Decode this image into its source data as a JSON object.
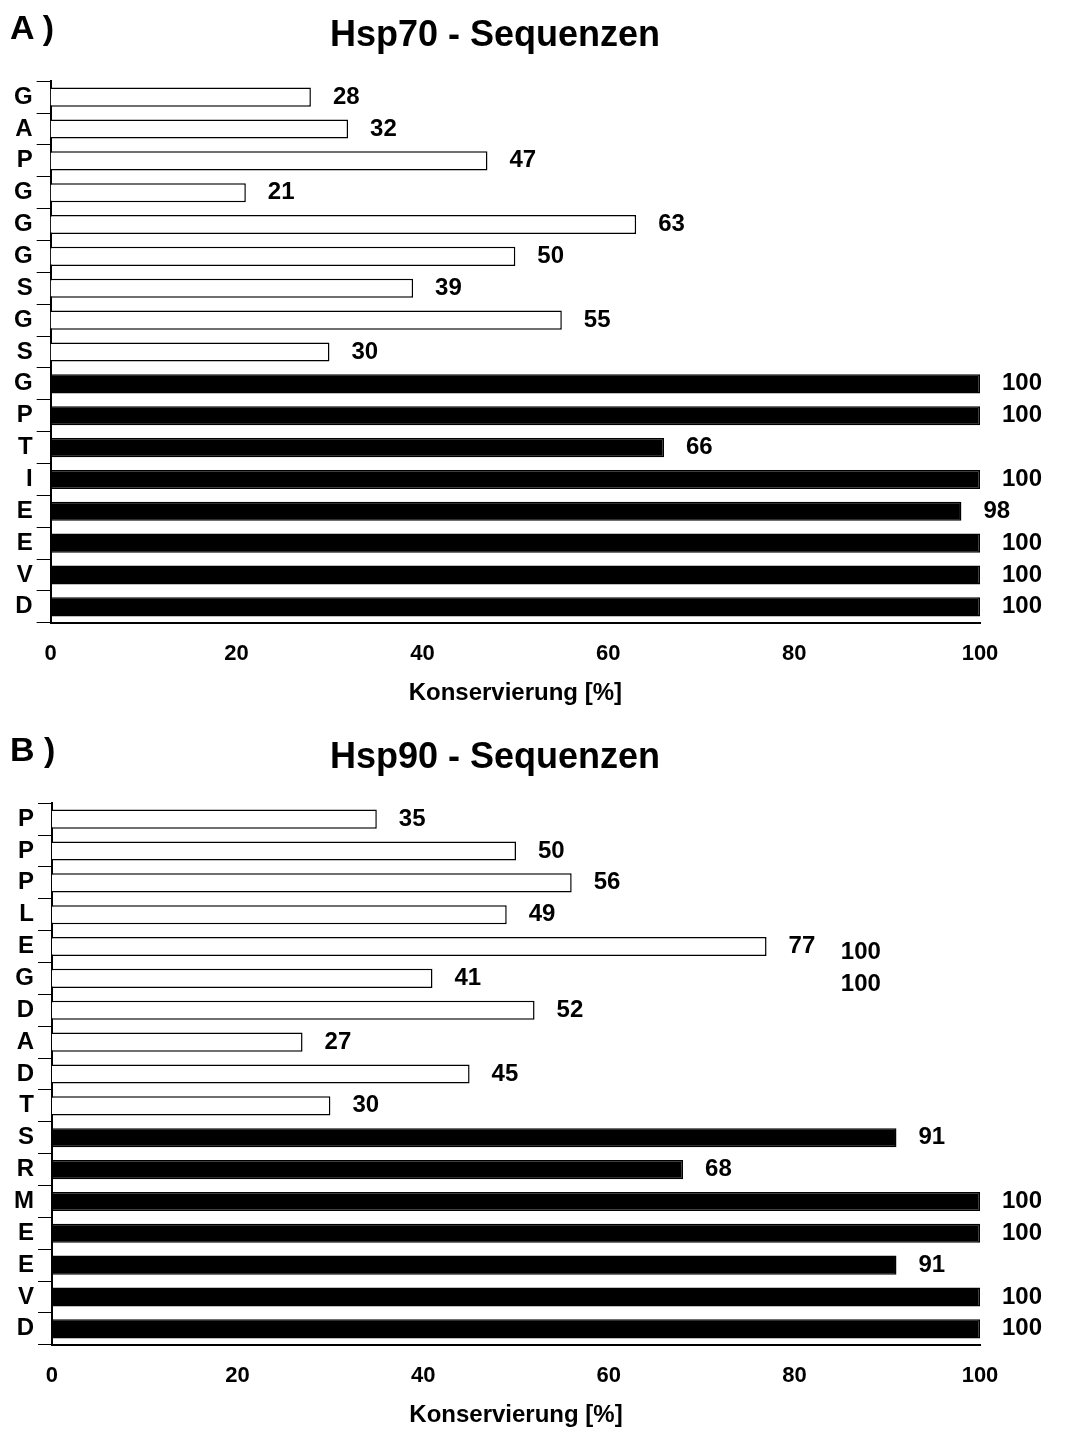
{
  "chart_data": [
    {
      "type": "bar",
      "orientation": "horizontal",
      "title": "Hsp70 - Sequenzen",
      "xlabel": "Konservierung [%]",
      "annotations": [
        "A )"
      ],
      "categories": [
        "G",
        "A",
        "P",
        "G",
        "G",
        "G",
        "S",
        "G",
        "S",
        "G",
        "P",
        "T",
        "I",
        "E",
        "E",
        "V",
        "D"
      ],
      "values": [
        28,
        32,
        47,
        21,
        63,
        50,
        39,
        55,
        30,
        100,
        100,
        66,
        100,
        98,
        100,
        100,
        100
      ],
      "colors": [
        "#ffffff",
        "#ffffff",
        "#ffffff",
        "#ffffff",
        "#ffffff",
        "#ffffff",
        "#ffffff",
        "#ffffff",
        "#ffffff",
        "#000000",
        "#000000",
        "#000000",
        "#000000",
        "#000000",
        "#000000",
        "#000000",
        "#000000"
      ],
      "xlim": [
        0,
        100
      ],
      "xticks": [
        0,
        20,
        40,
        60,
        80,
        100
      ],
      "data_labels": true,
      "grid": false,
      "legend": false
    },
    {
      "type": "bar",
      "orientation": "horizontal",
      "title": "Hsp90 - Sequenzen",
      "xlabel": "Konservierung [%]",
      "annotations": [
        "B )",
        "100",
        "100"
      ],
      "categories": [
        "P",
        "P",
        "P",
        "L",
        "E",
        "G",
        "D",
        "A",
        "D",
        "T",
        "S",
        "R",
        "M",
        "E",
        "E",
        "V",
        "D"
      ],
      "values": [
        35,
        50,
        56,
        49,
        77,
        41,
        52,
        27,
        45,
        30,
        91,
        68,
        100,
        100,
        91,
        100,
        100
      ],
      "colors": [
        "#ffffff",
        "#ffffff",
        "#ffffff",
        "#ffffff",
        "#ffffff",
        "#ffffff",
        "#ffffff",
        "#ffffff",
        "#ffffff",
        "#ffffff",
        "#000000",
        "#000000",
        "#000000",
        "#000000",
        "#000000",
        "#000000",
        "#000000"
      ],
      "xlim": [
        0,
        100
      ],
      "xticks": [
        0,
        20,
        40,
        60,
        80,
        100
      ],
      "data_labels": true,
      "grid": false,
      "legend": false
    }
  ]
}
